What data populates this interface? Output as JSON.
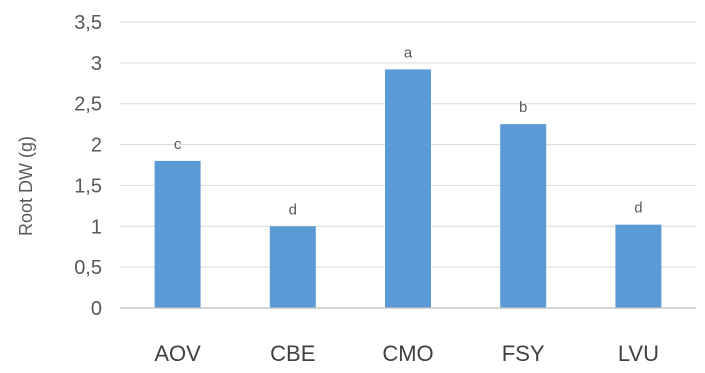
{
  "chart_data": {
    "type": "bar",
    "categories": [
      "AOV",
      "CBE",
      "CMO",
      "FSY",
      "LVU"
    ],
    "series": [
      {
        "values": [
          1.8,
          1.0,
          2.92,
          2.25,
          1.02
        ],
        "labels": [
          "c",
          "d",
          "a",
          "b",
          "d"
        ],
        "color": "#5b9bd5"
      }
    ],
    "ylabel": "Root DW (g)",
    "xlabel": "",
    "ylim": [
      0,
      3.5
    ],
    "yticks": [
      0,
      0.5,
      1,
      1.5,
      2,
      2.5,
      3,
      3.5
    ],
    "ytick_labels": [
      "0",
      "0,5",
      "1",
      "1,5",
      "2",
      "2,5",
      "3",
      "3,5"
    ],
    "grid": true,
    "legend": "none"
  }
}
